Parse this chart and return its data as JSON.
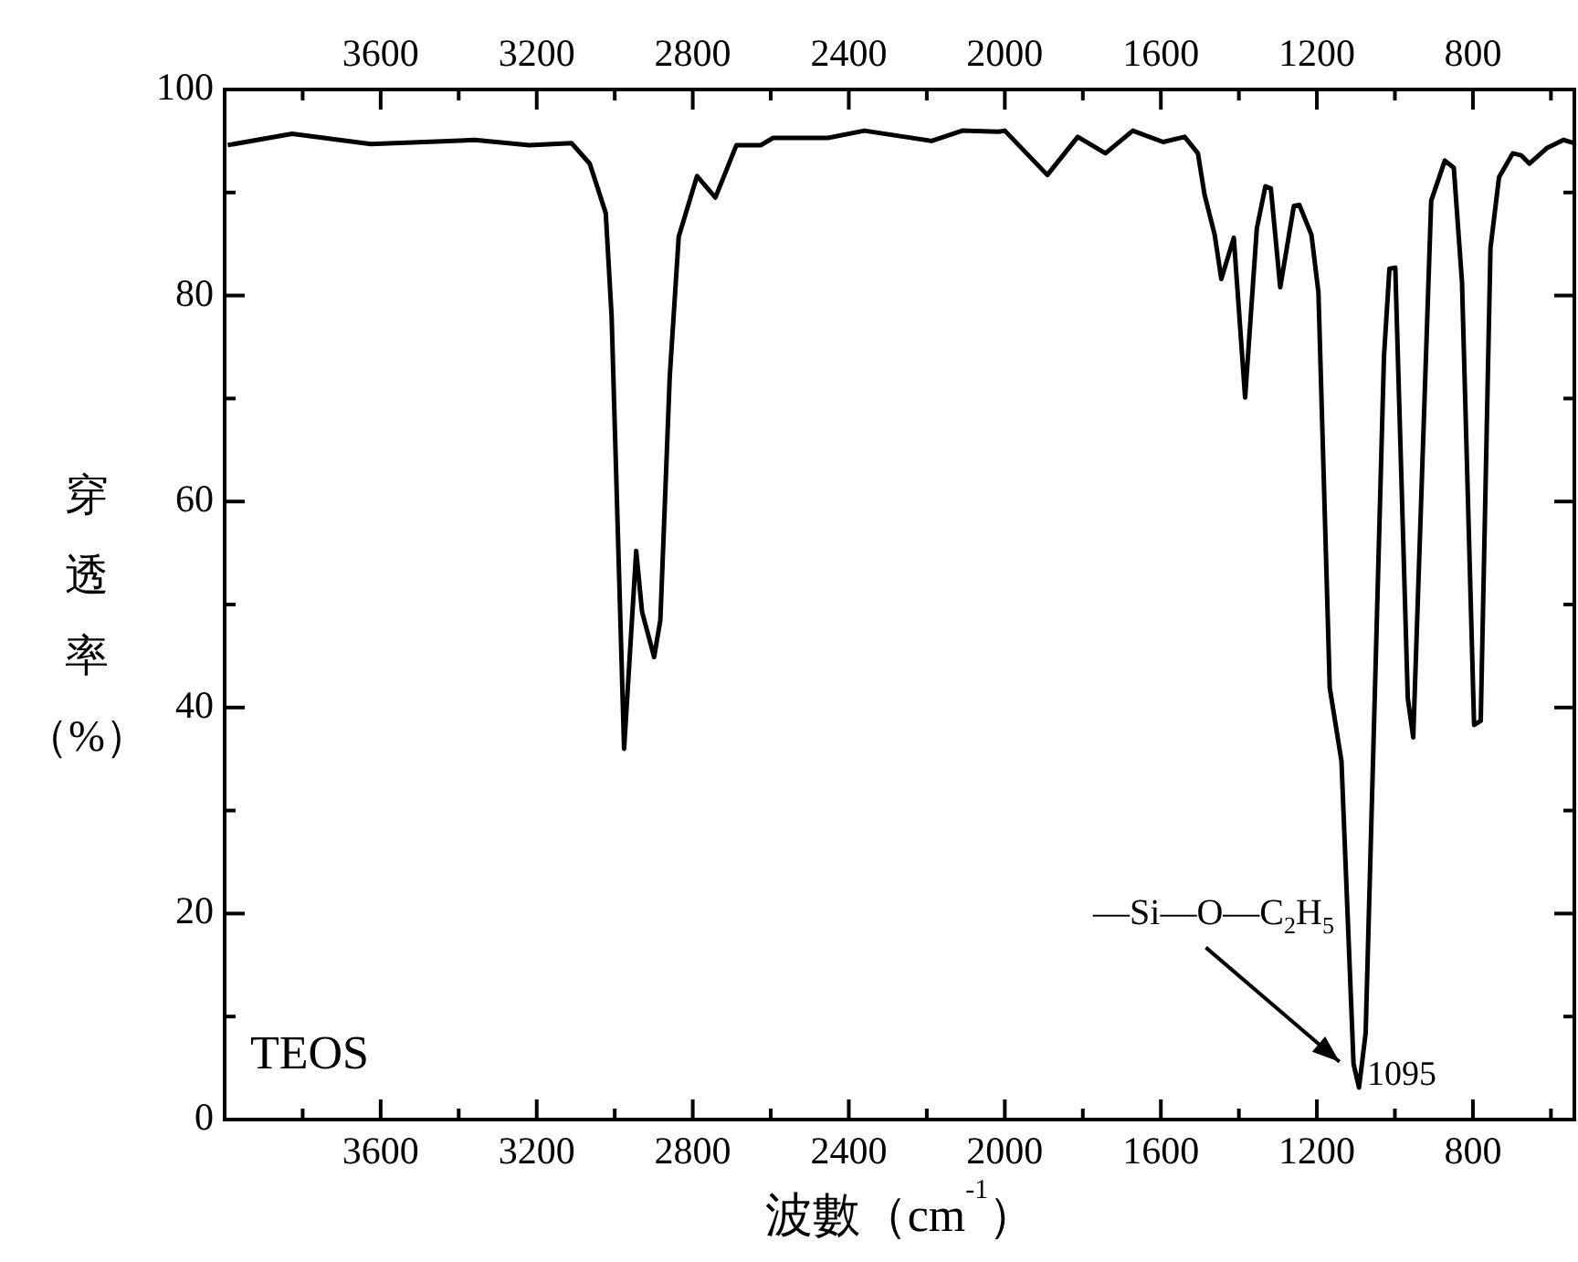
{
  "chart_data": {
    "type": "line",
    "xlabel": "波數（cm$^{-1}$）",
    "ylabel": "穿透率（%）",
    "x": [
      3992,
      3827,
      3625,
      3359,
      3219,
      3111,
      3064,
      3023,
      3008,
      2976,
      2945,
      2930,
      2899,
      2883,
      2859,
      2836,
      2789,
      2742,
      2688,
      2625,
      2594,
      2453,
      2360,
      2188,
      2109,
      2016,
      2000,
      1891,
      1813,
      1742,
      1672,
      1594,
      1539,
      1505,
      1488,
      1462,
      1445,
      1413,
      1384,
      1354,
      1332,
      1318,
      1294,
      1259,
      1245,
      1214,
      1196,
      1167,
      1137,
      1106,
      1092,
      1075,
      1028,
      1014,
      999,
      967,
      953,
      907,
      872,
      849,
      828,
      797,
      780,
      755,
      733,
      698,
      676,
      655,
      611,
      568,
      541
    ],
    "values": [
      94.6,
      95.7,
      94.7,
      95.1,
      94.6,
      94.8,
      92.8,
      88.0,
      78,
      36.0,
      55.2,
      49.3,
      44.9,
      48.5,
      72.1,
      85.7,
      91.6,
      89.5,
      94.6,
      94.6,
      95.3,
      95.3,
      96.0,
      95.0,
      96.0,
      95.9,
      96.0,
      91.7,
      95.4,
      93.8,
      96.0,
      94.9,
      95.4,
      93.8,
      89.8,
      85.9,
      81.6,
      85.6,
      70.1,
      86.5,
      90.6,
      90.4,
      80.8,
      88.7,
      88.8,
      85.9,
      80.3,
      41.9,
      34.8,
      5.4,
      3.1,
      8.4,
      74.1,
      82.6,
      82.7,
      40.9,
      37.1,
      89.2,
      93.1,
      92.4,
      81.3,
      38.3,
      38.7,
      84.6,
      91.5,
      93.8,
      93.6,
      92.8,
      94.3,
      95.1,
      94.8
    ],
    "color": "#000000",
    "marker": "none",
    "line_style": "solid",
    "legend": false,
    "xlim": [
      4000,
      540
    ],
    "xticks": [
      {
        "value": 3800,
        "label": null
      },
      3600,
      {
        "value": 3400,
        "label": null
      },
      3200,
      {
        "value": 3000,
        "label": null
      },
      2800,
      {
        "value": 2600,
        "label": null
      },
      2400,
      {
        "value": 2200,
        "label": null
      },
      2000,
      {
        "value": 1800,
        "label": null
      },
      1600,
      {
        "value": 1400,
        "label": null
      },
      1200,
      {
        "value": 1000,
        "label": null
      },
      800,
      {
        "value": 600,
        "label": null
      }
    ],
    "x2lim": [
      4000,
      540
    ],
    "x2ticks": [
      {
        "value": 3800,
        "label": null
      },
      3600,
      {
        "value": 3400,
        "label": null
      },
      3200,
      {
        "value": 3000,
        "label": null
      },
      2800,
      {
        "value": 2600,
        "label": null
      },
      2400,
      {
        "value": 2200,
        "label": null
      },
      2000,
      {
        "value": 1800,
        "label": null
      },
      1600,
      {
        "value": 1400,
        "label": null
      },
      1200,
      {
        "value": 1000,
        "label": null
      },
      800,
      {
        "value": 600,
        "label": null
      }
    ],
    "ylim": [
      0,
      100
    ],
    "yticks": [
      0,
      {
        "value": 10,
        "label": null
      },
      20,
      {
        "value": 30,
        "label": null
      },
      40,
      {
        "value": 50,
        "label": null
      },
      60,
      {
        "value": 70,
        "label": null
      },
      80,
      {
        "value": 90,
        "label": null
      },
      100
    ],
    "annotations": [
      "TEOS",
      "—Si—O—C$_{2}$H$_{5}$",
      {
        "text": "1095",
        "x": 1095,
        "y": 3
      }
    ]
  }
}
